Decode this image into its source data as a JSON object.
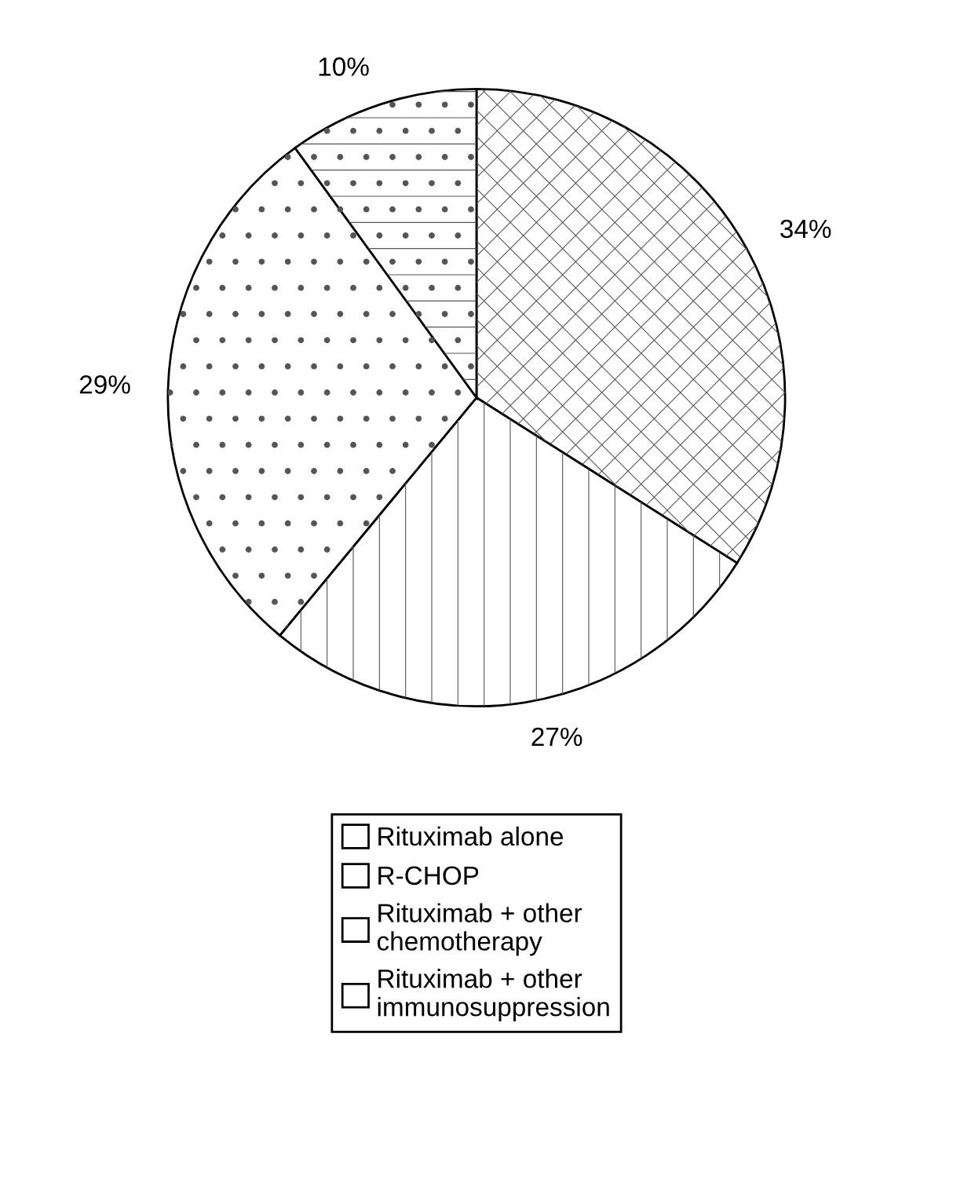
{
  "chart_data": {
    "type": "pie",
    "categories": [
      "Rituximab alone",
      "R-CHOP",
      "Rituximab + other\nchemotherapy",
      "Rituximab + other\nimmunosuppression"
    ],
    "values": [
      34,
      27,
      29,
      10
    ],
    "value_labels": [
      "34%",
      "27%",
      "29%",
      "10%"
    ],
    "colors": [
      "#ffffff",
      "#ffffff",
      "#ffffff",
      "#ffffff"
    ],
    "legend": "bottom"
  }
}
